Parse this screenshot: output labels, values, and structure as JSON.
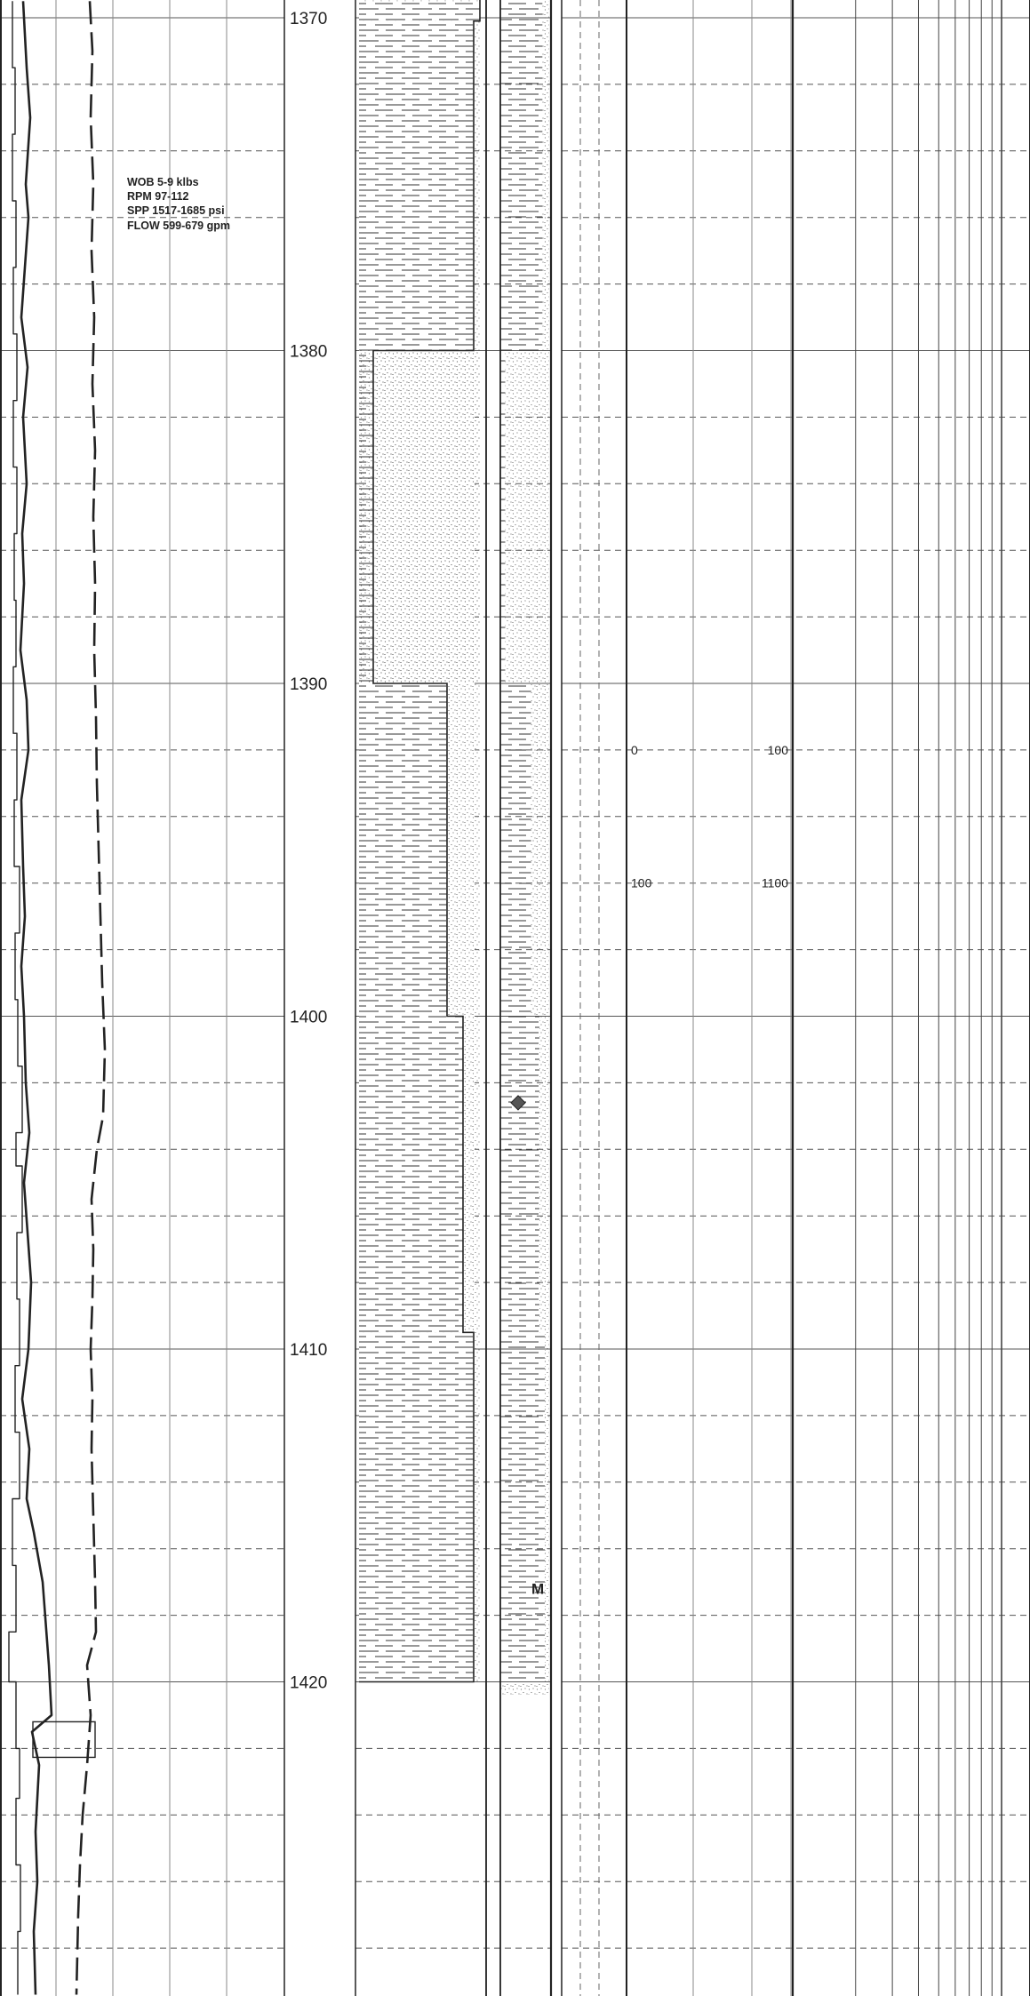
{
  "drilling_params": {
    "wob": "WOB 5-9 klbs",
    "rpm": "RPM 97-112",
    "spp": "SPP 1517-1685 psi",
    "flow": "FLOW 599-679 gpm"
  },
  "colors": {
    "line": "#222222",
    "grid": "#555555",
    "background": "#ffffff"
  },
  "chart_data": {
    "type": "line",
    "title": "",
    "ylabel": "",
    "depth_axis": {
      "ticks": [
        1370,
        1380,
        1390,
        1400,
        1410,
        1420
      ],
      "ylim": [
        1369.5,
        1429.4
      ],
      "inverted": true
    },
    "depth_labels": [
      "1370",
      "1380",
      "1390",
      "1400",
      "1410",
      "1420"
    ],
    "scale_labels": [
      {
        "text": "0",
        "depth": 1392.0,
        "track": "left"
      },
      {
        "text": "100",
        "depth": 1392.0,
        "track": "right"
      },
      {
        "text": "100",
        "depth": 1396.0,
        "track": "left"
      },
      {
        "text": "1100",
        "depth": 1396.0,
        "track": "right"
      }
    ],
    "lithology": {
      "interpreted": [
        {
          "top": 1369.5,
          "base": 1380.0,
          "lithology": "shale",
          "sand_fraction": 0.0
        },
        {
          "top": 1380.0,
          "base": 1390.0,
          "lithology": "sandstone",
          "sand_fraction": 0.85
        },
        {
          "top": 1390.0,
          "base": 1400.0,
          "lithology": "shale",
          "sand_fraction": 0.0
        },
        {
          "top": 1400.0,
          "base": 1409.5,
          "lithology": "shale",
          "sand_fraction": 0.0
        },
        {
          "top": 1409.5,
          "base": 1420.0,
          "lithology": "shale",
          "sand_fraction": 0.0
        }
      ],
      "percent": [
        {
          "top": 1369.5,
          "base": 1370.1,
          "shale_fraction": 0.86
        },
        {
          "top": 1370.1,
          "base": 1380.0,
          "shale_fraction": 0.86
        },
        {
          "top": 1380.0,
          "base": 1390.0,
          "shale_fraction": 0.1
        },
        {
          "top": 1390.0,
          "base": 1400.0,
          "shale_fraction": 0.63
        },
        {
          "top": 1400.0,
          "base": 1409.5,
          "shale_fraction": 0.8
        },
        {
          "top": 1409.5,
          "base": 1420.0,
          "shale_fraction": 0.91
        }
      ]
    },
    "markers": [
      {
        "kind": "diamond",
        "depth": 1402.6
      },
      {
        "kind": "label",
        "text": "M",
        "depth": 1417.2
      }
    ],
    "series": [
      {
        "style": "solid-thin-stepped",
        "points": [
          [
            14,
            1369.5
          ],
          [
            14,
            1371.5
          ],
          [
            17,
            1371.5
          ],
          [
            17,
            1373.5
          ],
          [
            14,
            1373.5
          ],
          [
            14,
            1375.5
          ],
          [
            18,
            1375.5
          ],
          [
            18,
            1377.5
          ],
          [
            15,
            1377.5
          ],
          [
            15,
            1379.5
          ],
          [
            19,
            1379.5
          ],
          [
            19,
            1381.5
          ],
          [
            15,
            1381.5
          ],
          [
            15,
            1383.5
          ],
          [
            19,
            1383.5
          ],
          [
            19,
            1385.5
          ],
          [
            16,
            1385.5
          ],
          [
            16,
            1387.5
          ],
          [
            18,
            1387.5
          ],
          [
            18,
            1389.5
          ],
          [
            15,
            1389.5
          ],
          [
            15,
            1391.5
          ],
          [
            19,
            1391.5
          ],
          [
            19,
            1393.5
          ],
          [
            16,
            1393.5
          ],
          [
            16,
            1395.5
          ],
          [
            22,
            1395.5
          ],
          [
            22,
            1397.5
          ],
          [
            17,
            1397.5
          ],
          [
            17,
            1399.5
          ],
          [
            20,
            1399.5
          ],
          [
            20,
            1401.5
          ],
          [
            25,
            1401.5
          ],
          [
            25,
            1403.5
          ],
          [
            18,
            1403.5
          ],
          [
            18,
            1404.5
          ],
          [
            25,
            1404.5
          ],
          [
            25,
            1406.5
          ],
          [
            19,
            1406.5
          ],
          [
            19,
            1408.5
          ],
          [
            22,
            1408.5
          ],
          [
            22,
            1410.5
          ],
          [
            17,
            1410.5
          ],
          [
            17,
            1412.5
          ],
          [
            22,
            1412.5
          ],
          [
            22,
            1414.5
          ],
          [
            14,
            1414.5
          ],
          [
            14,
            1416.5
          ],
          [
            18,
            1416.5
          ],
          [
            18,
            1418.5
          ],
          [
            10,
            1418.5
          ],
          [
            10,
            1420.0
          ],
          [
            18,
            1420.0
          ],
          [
            18,
            1422.0
          ],
          [
            22,
            1422.0
          ],
          [
            22,
            1423.5
          ],
          [
            18,
            1423.5
          ],
          [
            18,
            1425.5
          ],
          [
            23,
            1425.5
          ],
          [
            23,
            1427.5
          ],
          [
            20,
            1427.5
          ],
          [
            20,
            1429.4
          ]
        ]
      },
      {
        "style": "solid-thick",
        "points": [
          [
            26,
            1369.5
          ],
          [
            30,
            1371.5
          ],
          [
            34,
            1373.0
          ],
          [
            29,
            1375.0
          ],
          [
            32,
            1376.0
          ],
          [
            28,
            1377.5
          ],
          [
            24,
            1379.0
          ],
          [
            31,
            1380.5
          ],
          [
            26,
            1382.0
          ],
          [
            30,
            1384.0
          ],
          [
            25,
            1385.5
          ],
          [
            27,
            1387.0
          ],
          [
            23,
            1389.0
          ],
          [
            30,
            1390.5
          ],
          [
            32,
            1392.0
          ],
          [
            24,
            1393.5
          ],
          [
            26,
            1395.5
          ],
          [
            28,
            1397.0
          ],
          [
            24,
            1398.5
          ],
          [
            27,
            1400.0
          ],
          [
            29,
            1402.0
          ],
          [
            33,
            1403.5
          ],
          [
            27,
            1405.0
          ],
          [
            31,
            1406.5
          ],
          [
            35,
            1408.0
          ],
          [
            32,
            1410.0
          ],
          [
            25,
            1411.5
          ],
          [
            33,
            1413.0
          ],
          [
            30,
            1414.5
          ],
          [
            38,
            1415.5
          ],
          [
            48,
            1417.0
          ],
          [
            55,
            1419.5
          ],
          [
            58,
            1421.0
          ],
          [
            36,
            1421.5
          ],
          [
            44,
            1422.5
          ],
          [
            40,
            1424.5
          ],
          [
            42,
            1426.0
          ],
          [
            38,
            1427.5
          ],
          [
            40,
            1429.4
          ]
        ]
      },
      {
        "style": "long-dash-thick",
        "points": [
          [
            101,
            1369.5
          ],
          [
            104,
            1371.0
          ],
          [
            102,
            1373.0
          ],
          [
            105,
            1375.0
          ],
          [
            103,
            1377.0
          ],
          [
            106,
            1379.0
          ],
          [
            104,
            1381.0
          ],
          [
            107,
            1383.0
          ],
          [
            105,
            1385.0
          ],
          [
            107,
            1387.0
          ],
          [
            106,
            1389.0
          ],
          [
            108,
            1391.0
          ],
          [
            109,
            1393.0
          ],
          [
            111,
            1395.0
          ],
          [
            113,
            1397.0
          ],
          [
            115,
            1399.0
          ],
          [
            118,
            1401.0
          ],
          [
            116,
            1403.0
          ],
          [
            109,
            1404.0
          ],
          [
            103,
            1405.5
          ],
          [
            105,
            1407.0
          ],
          [
            104,
            1408.5
          ],
          [
            102,
            1410.0
          ],
          [
            104,
            1411.5
          ],
          [
            103,
            1413.0
          ],
          [
            105,
            1415.0
          ],
          [
            107,
            1417.0
          ],
          [
            108,
            1418.5
          ],
          [
            98,
            1419.5
          ],
          [
            102,
            1421.0
          ],
          [
            98,
            1422.5
          ],
          [
            93,
            1424.0
          ],
          [
            90,
            1425.5
          ],
          [
            88,
            1427.0
          ],
          [
            86,
            1429.4
          ]
        ]
      }
    ]
  }
}
